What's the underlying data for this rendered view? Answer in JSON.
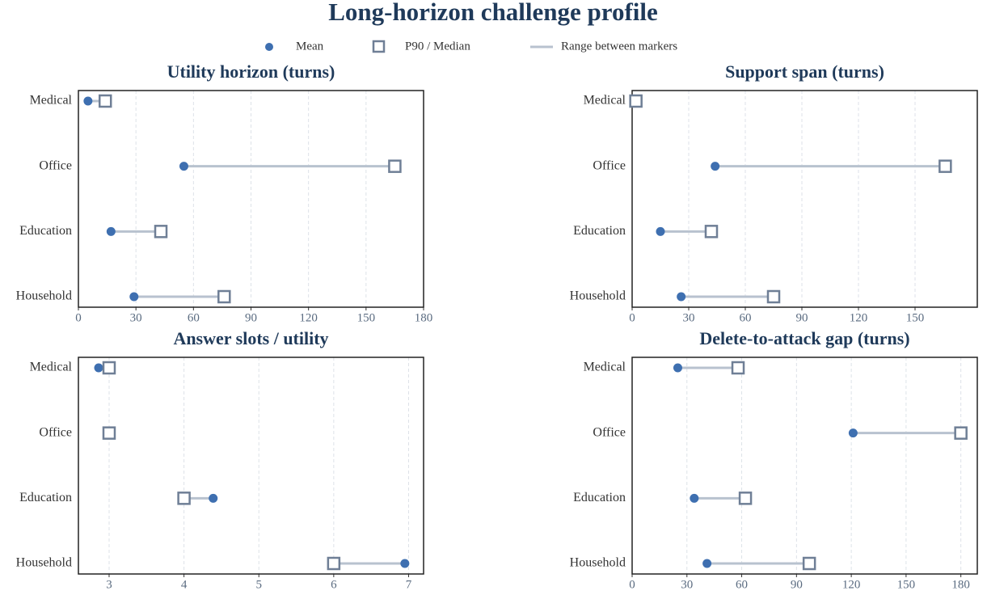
{
  "title": "Long-horizon challenge profile",
  "legend": {
    "range_label": "Range between markers",
    "range_color": "#b8c2cf"
  },
  "chart_data": [
    {
      "type": "dumbbell",
      "title": "Utility horizon (turns)",
      "categories": [
        "Medical",
        "Office",
        "Education",
        "Household"
      ],
      "series": [
        {
          "name": "Mean",
          "color": "#3e6fb0",
          "values": [
            5,
            55,
            17,
            29
          ]
        },
        {
          "name": "P90 / Median",
          "color": "#6f7f96",
          "values": [
            14,
            165,
            43,
            76
          ]
        }
      ],
      "xlim": [
        0,
        180
      ],
      "xticks": [
        0,
        30,
        60,
        90,
        120,
        150,
        180
      ],
      "grid": true
    },
    {
      "type": "dumbbell",
      "title": "Support span (turns)",
      "categories": [
        "Medical",
        "Office",
        "Education",
        "Household"
      ],
      "series": [
        {
          "name": "Mean",
          "color": "#3e6fb0",
          "values": [
            1,
            44,
            15,
            26
          ]
        },
        {
          "name": "P90 / Median",
          "color": "#6f7f96",
          "values": [
            2,
            166,
            42,
            75
          ]
        }
      ],
      "xlim": [
        0,
        183
      ],
      "xticks": [
        0,
        30,
        60,
        90,
        120,
        150
      ],
      "grid": true
    },
    {
      "type": "dumbbell",
      "title": "Answer slots / utility",
      "categories": [
        "Medical",
        "Office",
        "Education",
        "Household"
      ],
      "series": [
        {
          "name": "Mean",
          "color": "#3e6fb0",
          "values": [
            2.86,
            3,
            4.39,
            6.95
          ]
        },
        {
          "name": "P90 / Median",
          "color": "#6f7f96",
          "values": [
            3,
            3,
            4,
            6
          ]
        }
      ],
      "xlim": [
        2.59,
        7.2
      ],
      "xticks": [
        3,
        4,
        5,
        6,
        7
      ],
      "grid": true
    },
    {
      "type": "dumbbell",
      "title": "Delete-to-attack gap (turns)",
      "categories": [
        "Medical",
        "Office",
        "Education",
        "Household"
      ],
      "series": [
        {
          "name": "Mean",
          "color": "#3e6fb0",
          "values": [
            25,
            121,
            34,
            41
          ]
        },
        {
          "name": "P90 / Median",
          "color": "#6f7f96",
          "values": [
            58,
            180,
            62,
            97
          ]
        }
      ],
      "xlim": [
        0,
        189
      ],
      "xticks": [
        0,
        30,
        60,
        90,
        120,
        150,
        180
      ],
      "grid": true
    }
  ]
}
